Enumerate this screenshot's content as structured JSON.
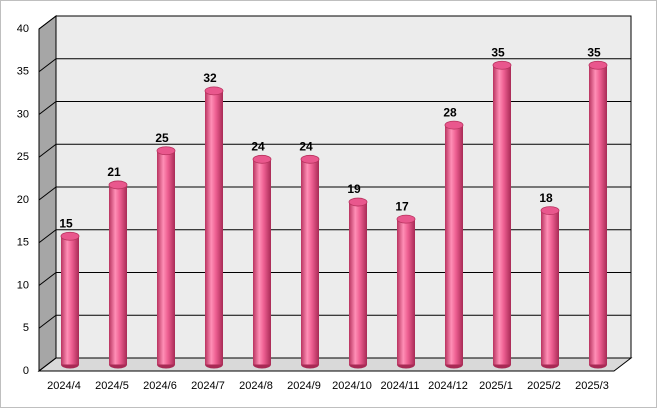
{
  "chart_data": {
    "type": "bar",
    "categories": [
      "2024/4",
      "2024/5",
      "2024/6",
      "2024/7",
      "2024/8",
      "2024/9",
      "2024/10",
      "2024/11",
      "2024/12",
      "2025/1",
      "2025/2",
      "2025/3"
    ],
    "values": [
      15,
      21,
      25,
      32,
      24,
      24,
      19,
      17,
      28,
      35,
      18,
      35
    ],
    "color": "#e9578d",
    "ylim": [
      0,
      40
    ],
    "yticks": [
      0,
      5,
      10,
      15,
      20,
      25,
      30,
      35,
      40
    ],
    "grid": true
  }
}
